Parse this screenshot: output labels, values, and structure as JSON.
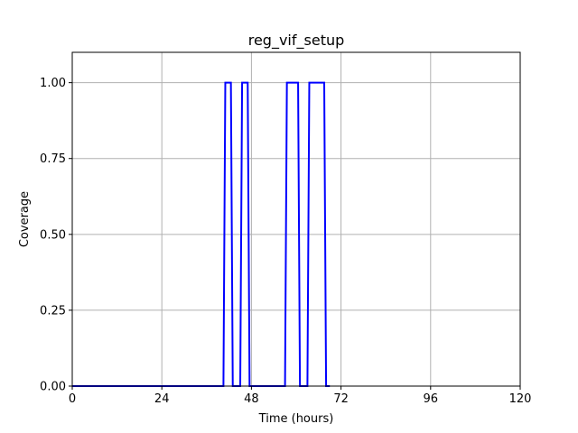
{
  "chart_data": {
    "type": "line",
    "title": "reg_vif_setup",
    "xlabel": "Time (hours)",
    "ylabel": "Coverage",
    "xlim": [
      0,
      120
    ],
    "ylim": [
      0,
      1.1
    ],
    "xticks": [
      0,
      24,
      48,
      72,
      96,
      120
    ],
    "xtick_labels": [
      "0",
      "24",
      "48",
      "72",
      "96",
      "120"
    ],
    "yticks": [
      0,
      0.25,
      0.5,
      0.75,
      1.0
    ],
    "ytick_labels": [
      "0.00",
      "0.25",
      "0.50",
      "0.75",
      "1.00"
    ],
    "grid": true,
    "series": [
      {
        "color": "#0000ff",
        "x": [
          0,
          40.5,
          41,
          42.5,
          43,
          45,
          45.5,
          47,
          47.5,
          57,
          57.5,
          60.5,
          61,
          63,
          63.5,
          67.5,
          68,
          69
        ],
        "y": [
          0,
          0,
          1,
          1,
          0,
          0,
          1,
          1,
          0,
          0,
          1,
          1,
          0,
          0,
          1,
          1,
          0,
          0
        ]
      }
    ]
  }
}
